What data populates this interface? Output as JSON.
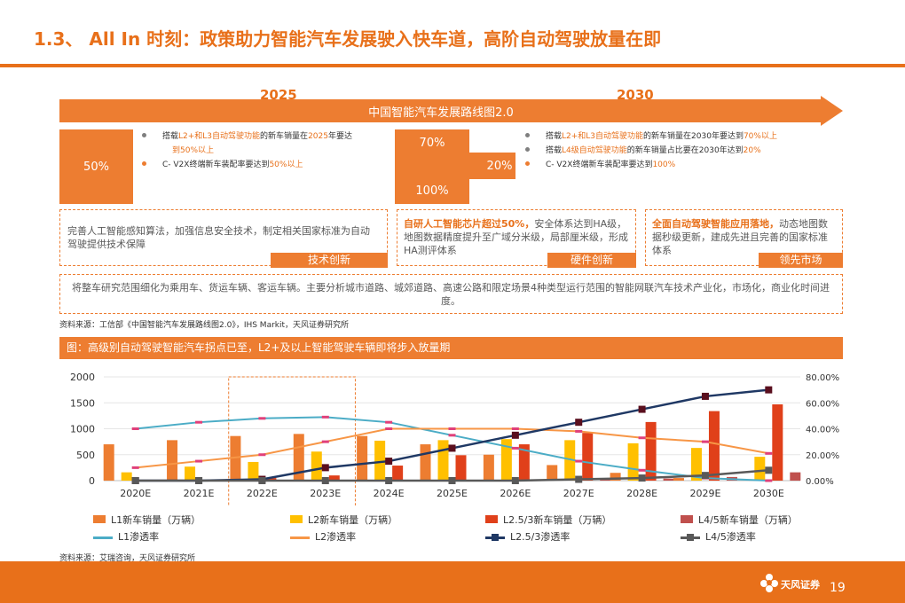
{
  "header": {
    "title": "1.3、 All In 时刻：政策助力智能汽车发展驶入快车道，高阶自动驾驶放量在即"
  },
  "roadmap": {
    "year_left": "2025",
    "year_right": "2030",
    "banner": "中国智能汽车发展路线图2.0",
    "left_box": "50%",
    "left_bullets": [
      {
        "pre": "搭载",
        "hl": "L2+和L3自动驾驶功能",
        "post": "的新车销量在",
        "hl2": "2025",
        "post2": "年要达"
      },
      {
        "line2": "到50%以上"
      },
      {
        "pre": "C- V2X终端新车装配率要达到",
        "hl": "50%以上"
      }
    ],
    "right_boxes": [
      "70%",
      "20%",
      "100%"
    ],
    "right_bullets": [
      {
        "pre": "搭载",
        "hl": "L2+和L3自动驾驶功能",
        "post": "的新车销量在2030年要达到",
        "hl2": "70%以上"
      },
      {
        "pre": "搭载",
        "hl": "L4级自动驾驶功能",
        "post": "的新车销量占比要在2030年达到",
        "hl2": "20%"
      },
      {
        "pre": "C- V2X终端新车装配率要达到",
        "hl": "100%"
      }
    ]
  },
  "pillars": [
    {
      "text_hl": "",
      "text": "完善人工智能感知算法，加强信息安全技术，制定相关国家标准为自动驾驶提供技术保障",
      "tag": "技术创新"
    },
    {
      "text_hl": "自研人工智能芯片超过50%，",
      "text": "安全体系达到HA级，地图数据精度提升至广域分米级，局部厘米级，形成HA测评体系",
      "tag": "硬件创新"
    },
    {
      "text_hl": "全面自动驾驶智能应用落地，",
      "text": "动态地图数据秒级更新，建成先进且完善的国家标准体系",
      "tag": "领先市场"
    }
  ],
  "summary": "将整车研究范围细化为乘用车、货运车辆、客运车辆。主要分析城市道路、城郊道路、高速公路和限定场景4种类型运行范围的智能网联汽车技术产业化，市场化，商业化时间进度。",
  "source1": "资料来源：工信部《中国智能汽车发展路线图2.0》，IHS Markit，天风证券研究所",
  "figure_title": "图：高级别自动驾驶智能汽车拐点已至，L2+及以上智能驾驶车辆即将步入放量期",
  "source2": "资料来源：艾瑞咨询，天风证券研究所",
  "footer": {
    "page": "19",
    "brand": "天风证券"
  },
  "colors": {
    "accent": "#ed7d31",
    "l1": "#ed7d31",
    "l2": "#ffc000",
    "l25": "#e0401a",
    "l45": "#c0504d",
    "l1rate": "#4bacc6",
    "l2rate": "#f79646",
    "l25rate": "#1f3864",
    "l45rate": "#595959"
  },
  "chart_data": {
    "type": "bar",
    "categories": [
      "2020E",
      "2021E",
      "2022E",
      "2023E",
      "2024E",
      "2025E",
      "2026E",
      "2027E",
      "2028E",
      "2029E",
      "2030E"
    ],
    "y_left": {
      "min": 0,
      "max": 2000,
      "ticks": [
        "0",
        "500",
        "1000",
        "1500",
        "2000"
      ]
    },
    "y_right": {
      "min": 0,
      "max": 0.8,
      "ticks": [
        "0.00%",
        "20.00%",
        "40.00%",
        "60.00%",
        "80.00%"
      ]
    },
    "bar_series": [
      {
        "name": "L1新车销量（万辆）",
        "values": [
          700,
          780,
          860,
          900,
          860,
          700,
          500,
          300,
          150,
          50,
          0
        ]
      },
      {
        "name": "L2新车销量（万辆）",
        "values": [
          160,
          270,
          360,
          560,
          770,
          780,
          800,
          780,
          720,
          630,
          460
        ]
      },
      {
        "name": "L2.5/3新车销量（万辆）",
        "values": [
          0,
          0,
          50,
          100,
          290,
          490,
          700,
          920,
          1130,
          1340,
          1470
        ]
      },
      {
        "name": "L4/5新车销量（万辆）",
        "values": [
          0,
          0,
          0,
          0,
          0,
          0,
          0,
          20,
          40,
          70,
          160
        ]
      }
    ],
    "line_series": [
      {
        "name": "L1渗透率",
        "values": [
          0.4,
          0.45,
          0.48,
          0.49,
          0.45,
          0.35,
          0.25,
          0.15,
          0.08,
          0.02,
          0.0
        ]
      },
      {
        "name": "L2渗透率",
        "values": [
          0.1,
          0.15,
          0.2,
          0.3,
          0.4,
          0.4,
          0.4,
          0.38,
          0.33,
          0.3,
          0.21
        ]
      },
      {
        "name": "L2.5/3渗透率",
        "values": [
          0.0,
          0.0,
          0.01,
          0.1,
          0.15,
          0.25,
          0.35,
          0.45,
          0.55,
          0.65,
          0.7
        ]
      },
      {
        "name": "L4/5渗透率",
        "values": [
          0.0,
          0.0,
          0.0,
          0.0,
          0.0,
          0.0,
          0.0,
          0.01,
          0.02,
          0.04,
          0.08
        ]
      }
    ],
    "highlight": [
      "2022E",
      "2023E"
    ]
  }
}
